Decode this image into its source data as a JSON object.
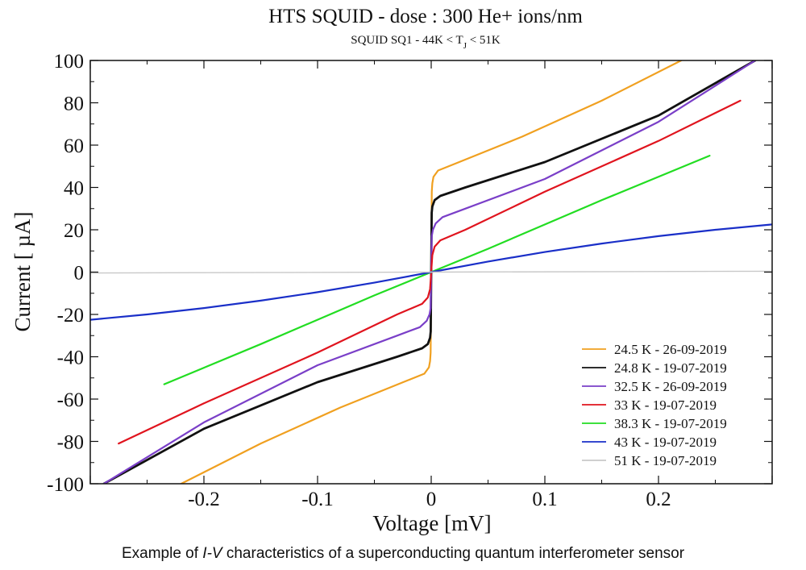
{
  "chart_data": {
    "type": "line",
    "title": "HTS SQUID - dose : 300 He+ ions/nm",
    "subtitle": {
      "prefix": "SQUID SQ1 - 44K < T",
      "sub": "J",
      "suffix": " < 51K"
    },
    "xlabel": "Voltage [mV]",
    "ylabel": "Current [ µA]",
    "xlim": [
      -0.3,
      0.3
    ],
    "ylim": [
      -100,
      100
    ],
    "xticks": [
      -0.2,
      -0.1,
      0,
      0.1,
      0.2
    ],
    "xtick_labels": [
      "-0.2",
      "-0.1",
      "0",
      "0.1",
      "0.2"
    ],
    "yticks": [
      -100,
      -80,
      -60,
      -40,
      -20,
      0,
      20,
      40,
      60,
      80,
      100
    ],
    "ytick_labels": [
      "-100",
      "-80",
      "-60",
      "-40",
      "-20",
      "0",
      "20",
      "40",
      "60",
      "80",
      "100"
    ],
    "grid": false,
    "legend_position": "bottom-right",
    "series": [
      {
        "name": "24.5 K - 26-09-2019",
        "color": "#f0a020",
        "x": [
          -0.22,
          -0.15,
          -0.08,
          -0.02,
          -0.006,
          -0.002,
          -0.001,
          -0.0005,
          0,
          0.0005,
          0.001,
          0.002,
          0.006,
          0.02,
          0.08,
          0.15,
          0.22
        ],
        "y": [
          -100,
          -81,
          -64,
          -51,
          -48,
          -45,
          -42,
          -38,
          0,
          38,
          42,
          45,
          48,
          51,
          64,
          81,
          100
        ]
      },
      {
        "name": "24.8 K - 19-07-2019",
        "color": "#111111",
        "x": [
          -0.288,
          -0.2,
          -0.1,
          -0.03,
          -0.008,
          -0.003,
          -0.001,
          -0.0004,
          0,
          0.0004,
          0.001,
          0.003,
          0.008,
          0.03,
          0.1,
          0.2,
          0.285
        ],
        "y": [
          -100,
          -74,
          -52,
          -40,
          -36,
          -34,
          -31,
          -28,
          0,
          28,
          31,
          34,
          36,
          40,
          52,
          74,
          100
        ]
      },
      {
        "name": "32.5 K - 26-09-2019",
        "color": "#7a3fc8",
        "x": [
          -0.288,
          -0.2,
          -0.1,
          -0.03,
          -0.01,
          -0.004,
          -0.0015,
          -0.0005,
          0,
          0.0005,
          0.0015,
          0.004,
          0.01,
          0.03,
          0.1,
          0.2,
          0.285
        ],
        "y": [
          -100,
          -71,
          -44,
          -30,
          -26,
          -23,
          -20,
          -17,
          0,
          17,
          20,
          23,
          26,
          30,
          44,
          71,
          100
        ]
      },
      {
        "name": "33 K - 19-07-2019",
        "color": "#e0141e",
        "x": [
          -0.275,
          -0.2,
          -0.1,
          -0.03,
          -0.008,
          -0.003,
          -0.001,
          0,
          0.001,
          0.003,
          0.008,
          0.03,
          0.1,
          0.2,
          0.272
        ],
        "y": [
          -81,
          -62,
          -38,
          -20,
          -15,
          -12,
          -8,
          0,
          8,
          12,
          15,
          20,
          38,
          62,
          81
        ]
      },
      {
        "name": "38.3 K - 19-07-2019",
        "color": "#22dd22",
        "x": [
          -0.235,
          -0.15,
          -0.05,
          0,
          0.05,
          0.15,
          0.245
        ],
        "y": [
          -53,
          -34,
          -11,
          0,
          11,
          34,
          55
        ]
      },
      {
        "name": "43 K - 19-07-2019",
        "color": "#1a2fc8",
        "x": [
          -0.3,
          -0.25,
          -0.2,
          -0.15,
          -0.1,
          -0.05,
          0,
          0.05,
          0.1,
          0.15,
          0.2,
          0.25,
          0.3
        ],
        "y": [
          -22.5,
          -20,
          -17,
          -13.5,
          -9.5,
          -5,
          0,
          5,
          9.5,
          13.5,
          17,
          20,
          22.5
        ]
      },
      {
        "name": "51 K  - 19-07-2019",
        "color": "#c8c8c8",
        "x": [
          -0.3,
          0,
          0.3
        ],
        "y": [
          -0.4,
          0,
          0.4
        ]
      }
    ]
  },
  "caption": {
    "prefix": "Example of ",
    "italic": "I-V",
    "suffix": " characteristics of a superconducting quantum interferometer sensor"
  }
}
